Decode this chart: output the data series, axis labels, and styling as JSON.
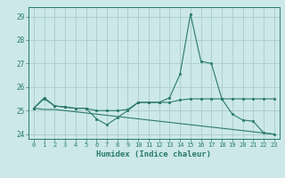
{
  "xlabel": "Humidex (Indice chaleur)",
  "ylabel": "",
  "background_color": "#cce8e8",
  "grid_color": "#aacccc",
  "line_color": "#2a7a6a",
  "xlim": [
    -0.5,
    23.5
  ],
  "ylim": [
    23.8,
    29.4
  ],
  "yticks": [
    24,
    25,
    26,
    27,
    28,
    29
  ],
  "xticks": [
    0,
    1,
    2,
    3,
    4,
    5,
    6,
    7,
    8,
    9,
    10,
    11,
    12,
    13,
    14,
    15,
    16,
    17,
    18,
    19,
    20,
    21,
    22,
    23
  ],
  "line1": [
    25.1,
    25.5,
    25.2,
    25.15,
    25.1,
    25.1,
    25.0,
    25.0,
    25.0,
    25.05,
    25.35,
    25.35,
    25.35,
    25.35,
    25.45,
    25.5,
    25.5,
    25.5,
    25.5,
    24.85,
    24.6,
    24.55,
    24.05,
    24.0
  ],
  "line2": [
    25.1,
    25.55,
    25.2,
    25.15,
    25.1,
    25.1,
    24.65,
    24.4,
    24.7,
    25.0,
    25.35,
    25.35,
    25.35,
    25.55,
    26.55,
    29.1,
    27.1,
    27.0,
    25.5,
    25.5,
    25.5,
    25.5,
    25.5,
    25.5
  ],
  "line3": [
    25.1,
    25.05,
    25.05,
    25.0,
    24.95,
    24.9,
    24.85,
    24.8,
    24.75,
    24.7,
    24.65,
    24.6,
    24.55,
    24.5,
    24.45,
    24.4,
    24.35,
    24.3,
    24.25,
    24.2,
    24.15,
    24.1,
    24.05,
    24.0
  ],
  "xlabel_fontsize": 6.5,
  "tick_fontsize": 5.0
}
